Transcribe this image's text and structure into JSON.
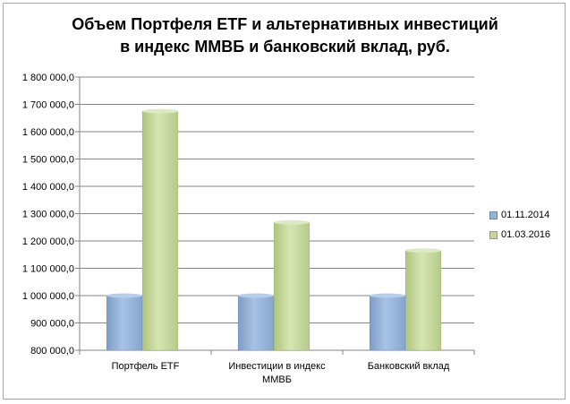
{
  "colors": {
    "series1": "#95b3d7",
    "series2": "#c3d69b",
    "grid": "#868686"
  },
  "chart_data": {
    "type": "bar",
    "title_lines": [
      "Объем Портфеля ETF и альтернативных  инвестиций",
      "в индекс ММВБ и банковский  вклад,  руб."
    ],
    "categories": [
      [
        "Портфель ETF"
      ],
      [
        "Инвестиции в индекс",
        "ММВБ"
      ],
      [
        "Банковский вклад"
      ]
    ],
    "series": [
      {
        "name": "01.11.2014",
        "values": [
          1000000,
          1000000,
          1000000
        ]
      },
      {
        "name": "01.03.2016",
        "values": [
          1675000,
          1268000,
          1165000
        ]
      }
    ],
    "ylim": [
      800000,
      1800000
    ],
    "yticks": [
      "800 000,0",
      "900 000,0",
      "1 000 000,0",
      "1 100 000,0",
      "1 200 000,0",
      "1 300 000,0",
      "1 400 000,0",
      "1 500 000,0",
      "1 600 000,0",
      "1 700 000,0",
      "1 800 000,0"
    ],
    "grid": true,
    "legend_position": "right"
  }
}
